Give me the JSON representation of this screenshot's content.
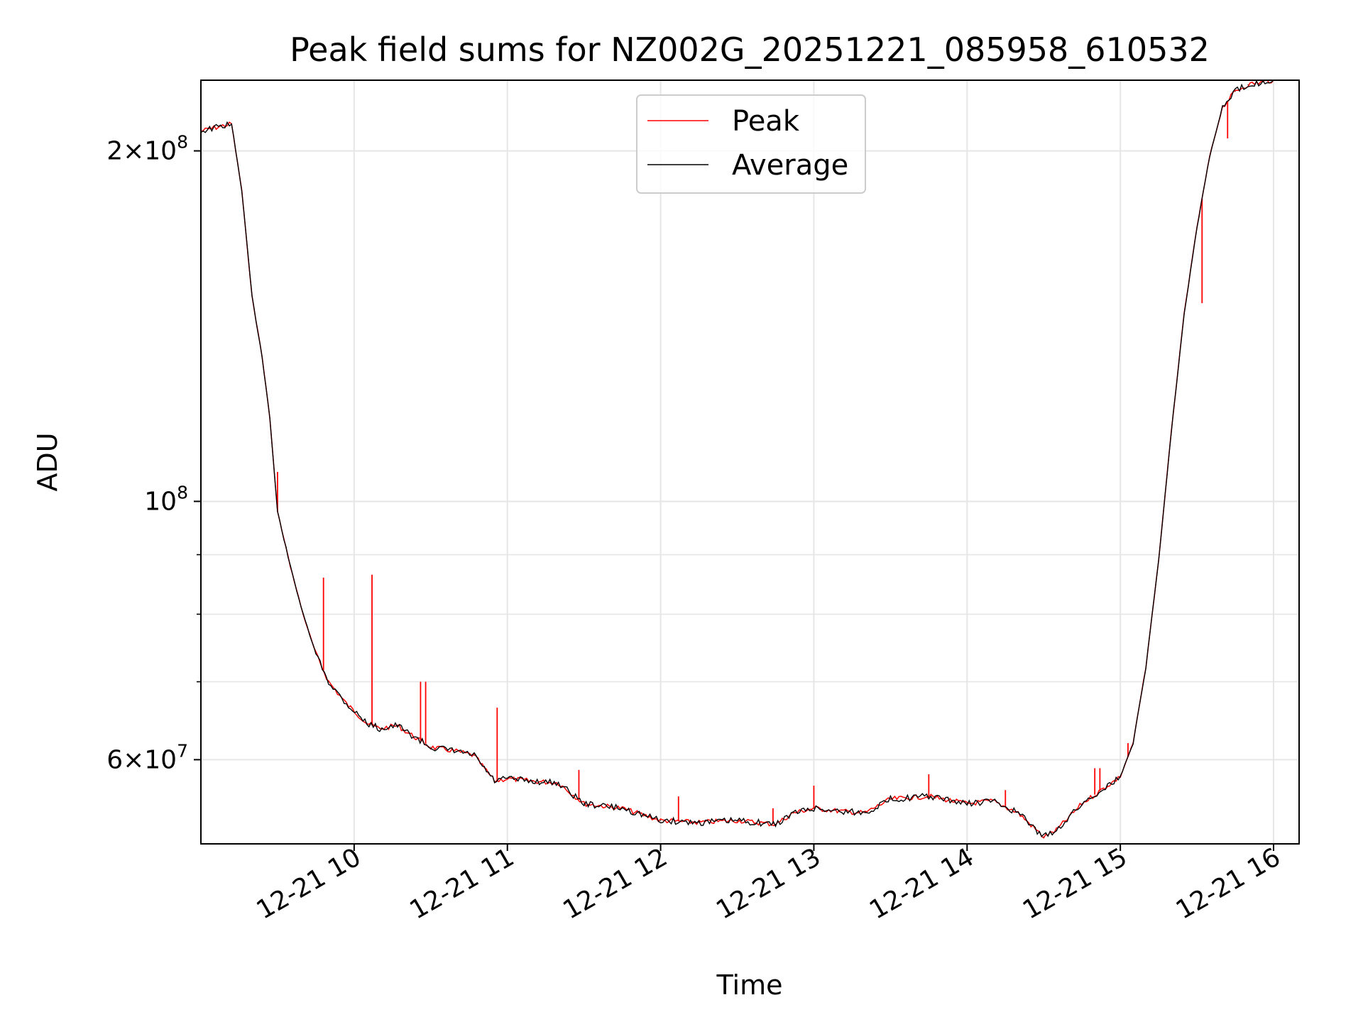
{
  "chart_data": {
    "type": "line",
    "title": "Peak field sums for NZ002G_20251221_085958_610532",
    "xlabel": "Time",
    "ylabel": "ADU",
    "yscale": "log",
    "grid": true,
    "legend_position": "upper-center",
    "x_tick_labels": [
      "12-21 10",
      "12-21 11",
      "12-21 12",
      "12-21 13",
      "12-21 14",
      "12-21 15",
      "12-21 16"
    ],
    "x_ticks": [
      "2025-12-21 10:00",
      "2025-12-21 11:00",
      "2025-12-21 12:00",
      "2025-12-21 13:00",
      "2025-12-21 14:00",
      "2025-12-21 15:00",
      "2025-12-21 16:00"
    ],
    "xlim": [
      "2025-12-21 09:00",
      "2025-12-21 16:10"
    ],
    "ylim": [
      50800000,
      230000000
    ],
    "y_major_ticks": [
      {
        "value": 60000000,
        "mantissa": "6",
        "exponent": "7"
      },
      {
        "value": 100000000,
        "mantissa": "",
        "exponent": "8"
      },
      {
        "value": 200000000,
        "mantissa": "2",
        "exponent": "8"
      }
    ],
    "y_minor_ticks": [
      70000000,
      80000000,
      90000000
    ],
    "x": [
      "2025-12-21 09:00",
      "2025-12-21 09:12",
      "2025-12-21 09:16",
      "2025-12-21 09:20",
      "2025-12-21 09:24",
      "2025-12-21 09:27",
      "2025-12-21 09:30",
      "2025-12-21 09:35",
      "2025-12-21 09:40",
      "2025-12-21 09:45",
      "2025-12-21 09:50",
      "2025-12-21 09:57",
      "2025-12-21 10:05",
      "2025-12-21 10:10",
      "2025-12-21 10:17",
      "2025-12-21 10:20",
      "2025-12-21 10:30",
      "2025-12-21 10:40",
      "2025-12-21 10:47",
      "2025-12-21 10:55",
      "2025-12-21 11:00",
      "2025-12-21 11:10",
      "2025-12-21 11:20",
      "2025-12-21 11:30",
      "2025-12-21 11:45",
      "2025-12-21 12:00",
      "2025-12-21 12:15",
      "2025-12-21 12:30",
      "2025-12-21 12:45",
      "2025-12-21 12:52",
      "2025-12-21 13:00",
      "2025-12-21 13:10",
      "2025-12-21 13:20",
      "2025-12-21 13:30",
      "2025-12-21 13:45",
      "2025-12-21 14:00",
      "2025-12-21 14:10",
      "2025-12-21 14:20",
      "2025-12-21 14:30",
      "2025-12-21 14:35",
      "2025-12-21 14:45",
      "2025-12-21 14:55",
      "2025-12-21 15:00",
      "2025-12-21 15:05",
      "2025-12-21 15:10",
      "2025-12-21 15:15",
      "2025-12-21 15:20",
      "2025-12-21 15:25",
      "2025-12-21 15:30",
      "2025-12-21 15:35",
      "2025-12-21 15:40",
      "2025-12-21 15:45",
      "2025-12-21 15:50",
      "2025-12-21 16:00"
    ],
    "series": [
      {
        "name": "Average",
        "color": "#000000",
        "values": [
          208000000,
          211000000,
          185000000,
          150000000,
          133000000,
          118000000,
          98000000,
          88000000,
          80000000,
          74000000,
          70000000,
          67000000,
          64500000,
          63800000,
          64200000,
          63500000,
          61500000,
          61000000,
          60500000,
          57500000,
          57800000,
          57500000,
          57300000,
          55000000,
          54500000,
          53200000,
          53000000,
          53200000,
          52800000,
          54000000,
          54500000,
          54200000,
          54000000,
          55500000,
          55800000,
          55000000,
          55300000,
          54000000,
          51500000,
          52200000,
          55000000,
          57000000,
          58000000,
          62000000,
          72000000,
          89000000,
          115000000,
          145000000,
          172000000,
          198000000,
          218000000,
          225000000,
          228000000,
          230000000
        ]
      },
      {
        "name": "Peak",
        "color": "#ff0000",
        "spikes": [
          {
            "x": "2025-12-21 09:30",
            "value": 106000000
          },
          {
            "x": "2025-12-21 09:48",
            "value": 86000000
          },
          {
            "x": "2025-12-21 10:07",
            "value": 86500000
          },
          {
            "x": "2025-12-21 10:26",
            "value": 70000000
          },
          {
            "x": "2025-12-21 10:28",
            "value": 70000000
          },
          {
            "x": "2025-12-21 10:56",
            "value": 66500000
          },
          {
            "x": "2025-12-21 11:28",
            "value": 58800000
          },
          {
            "x": "2025-12-21 12:07",
            "value": 55800000
          },
          {
            "x": "2025-12-21 12:44",
            "value": 54500000
          },
          {
            "x": "2025-12-21 13:00",
            "value": 57000000
          },
          {
            "x": "2025-12-21 13:45",
            "value": 58300000
          },
          {
            "x": "2025-12-21 14:15",
            "value": 56500000
          },
          {
            "x": "2025-12-21 14:50",
            "value": 59000000
          },
          {
            "x": "2025-12-21 14:52",
            "value": 59000000
          },
          {
            "x": "2025-12-21 15:03",
            "value": 62000000
          },
          {
            "x": "2025-12-21 15:32",
            "value": 148000000
          },
          {
            "x": "2025-12-21 15:42",
            "value": 205000000
          }
        ]
      }
    ],
    "legend": [
      {
        "label": "Peak",
        "color": "#ff0000"
      },
      {
        "label": "Average",
        "color": "#000000"
      }
    ]
  }
}
